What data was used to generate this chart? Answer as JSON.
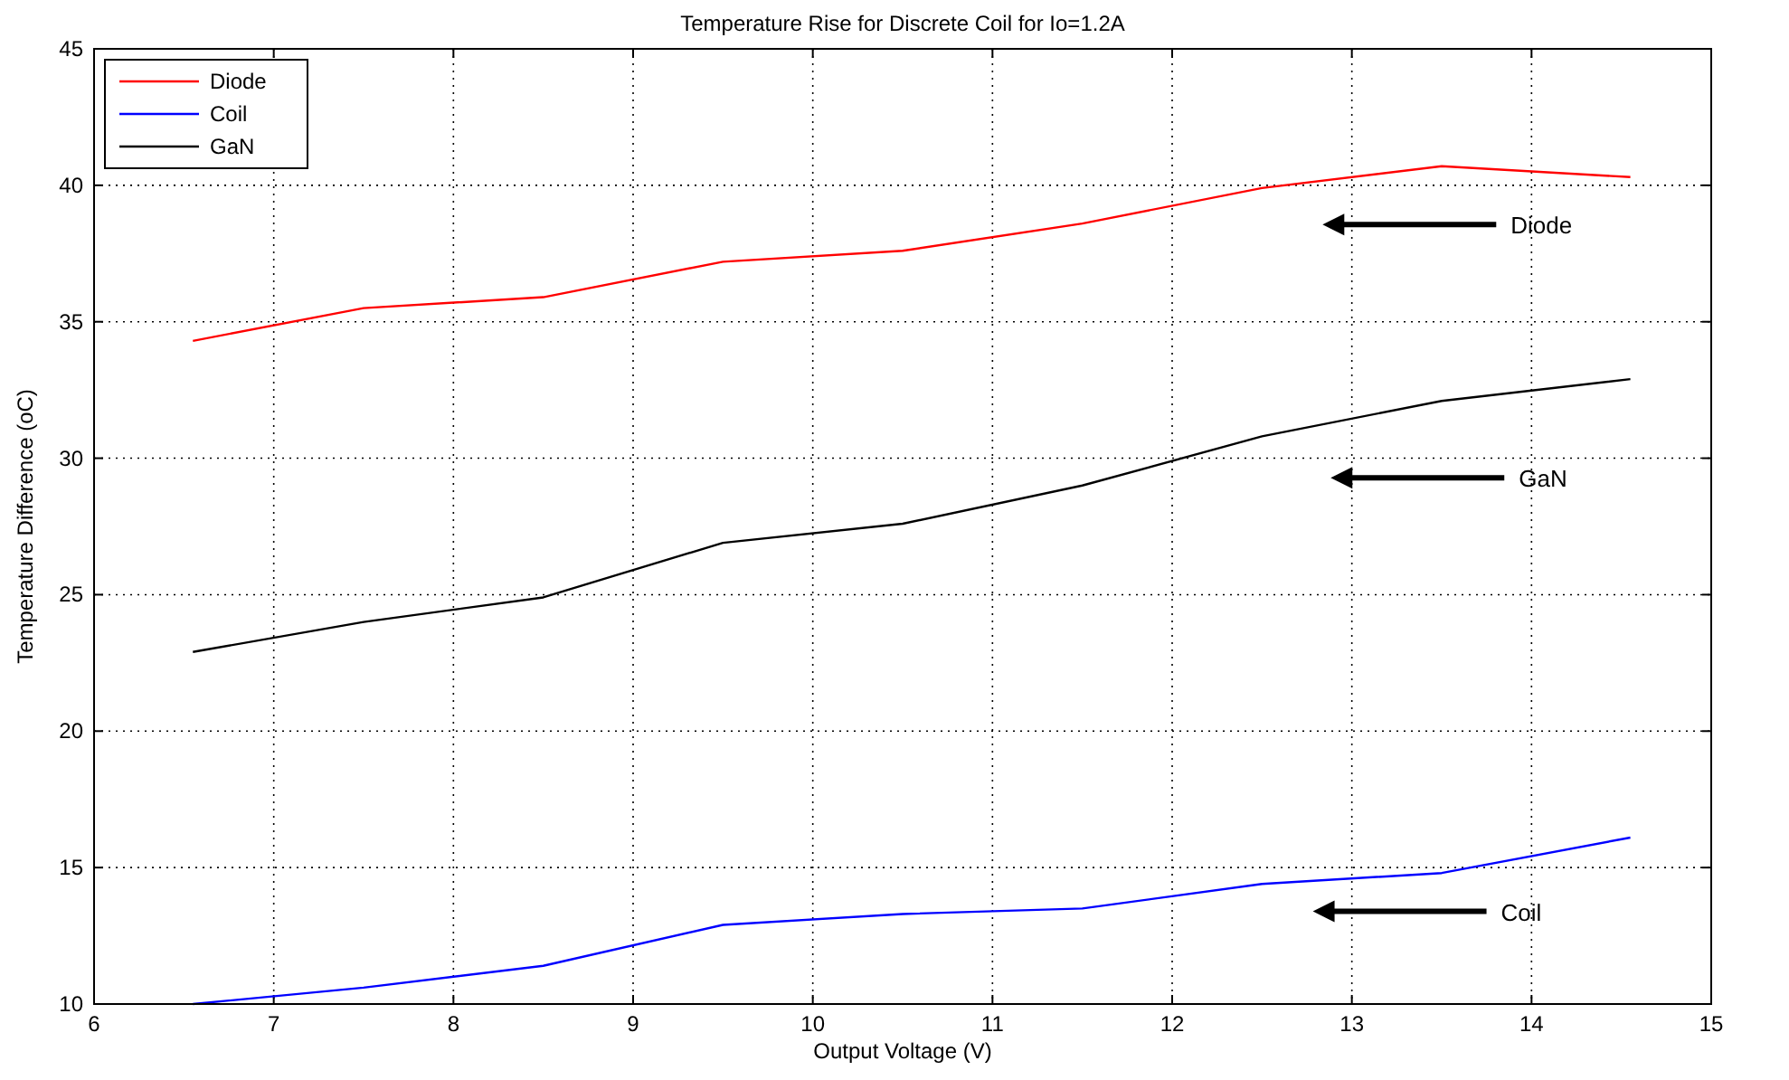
{
  "chart_data": {
    "type": "line",
    "title": "Temperature Rise for Discrete Coil for Io=1.2A",
    "xlabel": "Output Voltage (V)",
    "ylabel": "Temperature Difference (oC)",
    "x": [
      6.55,
      7.5,
      8.5,
      9.5,
      10.5,
      11.5,
      12.5,
      13.5,
      14.55
    ],
    "series": [
      {
        "name": "Diode",
        "color": "#ff0000",
        "values": [
          34.3,
          35.5,
          35.9,
          37.2,
          37.6,
          38.6,
          39.9,
          40.7,
          40.3
        ]
      },
      {
        "name": "Coil",
        "color": "#0000ff",
        "values": [
          10.0,
          10.6,
          11.4,
          12.9,
          13.3,
          13.5,
          14.4,
          14.8,
          16.1
        ]
      },
      {
        "name": "GaN",
        "color": "#000000",
        "values": [
          22.9,
          24.0,
          24.9,
          26.9,
          27.6,
          29.0,
          30.8,
          32.1,
          32.9
        ]
      }
    ],
    "xlim": [
      6,
      15
    ],
    "xticks": [
      6,
      7,
      8,
      9,
      10,
      11,
      12,
      13,
      14,
      15
    ],
    "ylim": [
      10,
      45
    ],
    "yticks": [
      10,
      15,
      20,
      25,
      30,
      35,
      40,
      45
    ],
    "grid": true,
    "legend": "top left",
    "marker": "none",
    "line_style": "solid",
    "annotations": [
      "Diode",
      "GaN",
      "Coil"
    ]
  }
}
